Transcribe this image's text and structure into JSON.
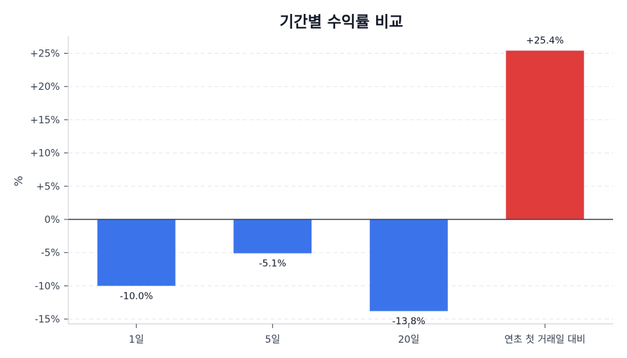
{
  "chart_data": {
    "type": "bar",
    "title": "기간별 수익률 비교",
    "xlabel": "",
    "ylabel": "%",
    "categories": [
      "1일",
      "5일",
      "20일",
      "연초 첫 거래일 대비"
    ],
    "values": [
      -10.0,
      -5.1,
      -13.8,
      25.4
    ],
    "value_labels": [
      "-10.0%",
      "-5.1%",
      "-13.8%",
      "+25.4%"
    ],
    "colors": [
      "#3b73ea",
      "#3b73ea",
      "#3b73ea",
      "#e03c3c"
    ],
    "ylim": [
      -15.7,
      27.5
    ],
    "yticks": [
      25,
      20,
      15,
      10,
      5,
      0,
      -5,
      -10,
      -15
    ],
    "ytick_labels": [
      "+25%",
      "+20%",
      "+15%",
      "+10%",
      "+5%",
      "0%",
      "-5%",
      "-10%",
      "-15%"
    ],
    "grid": true,
    "legend": null
  },
  "colors": {
    "positive": "#e03c3c",
    "negative": "#3b73ea",
    "zero_line": "#374151",
    "grid": "#e5e7eb",
    "axis": "#d1d5db"
  }
}
